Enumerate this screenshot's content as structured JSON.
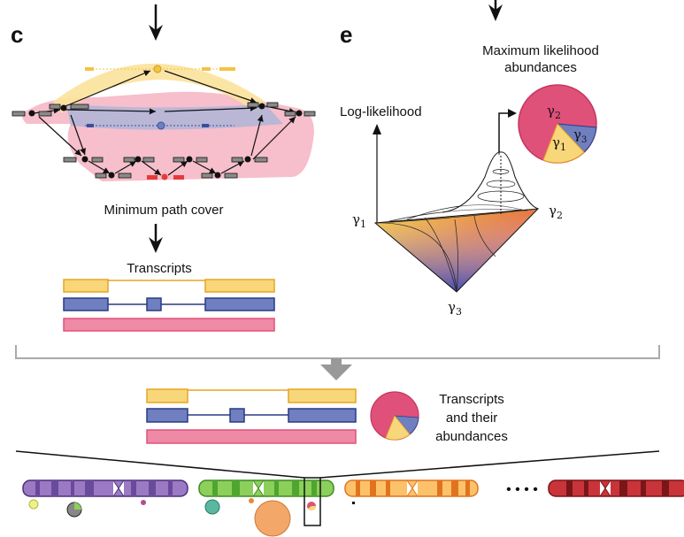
{
  "panels": {
    "c": "c",
    "e": "e"
  },
  "panel_c": {
    "caption": "Minimum path cover",
    "transcripts_title": "Transcripts"
  },
  "panel_e": {
    "pie_title_line1": "Maximum likelihood",
    "pie_title_line2": "abundances",
    "axis_label": "Log-likelihood",
    "gamma1": "γ",
    "gamma1_sub": "1",
    "gamma2": "γ",
    "gamma2_sub": "2",
    "gamma3": "γ",
    "gamma3_sub": "3"
  },
  "bottom": {
    "legend_line1": "Transcripts",
    "legend_line2": "and their",
    "legend_line3": "abundances",
    "ellipsis": "• • • •"
  },
  "colors": {
    "yellow": "#f5c243",
    "yellow_fill": "#f8d77a",
    "blue": "#3a4f9c",
    "blue_fill": "#6f7fbf",
    "pink": "#e0517a",
    "pink_fill": "#ee8aa6",
    "red": "#e53a3a",
    "gray_bar": "#8a8a8a"
  }
}
